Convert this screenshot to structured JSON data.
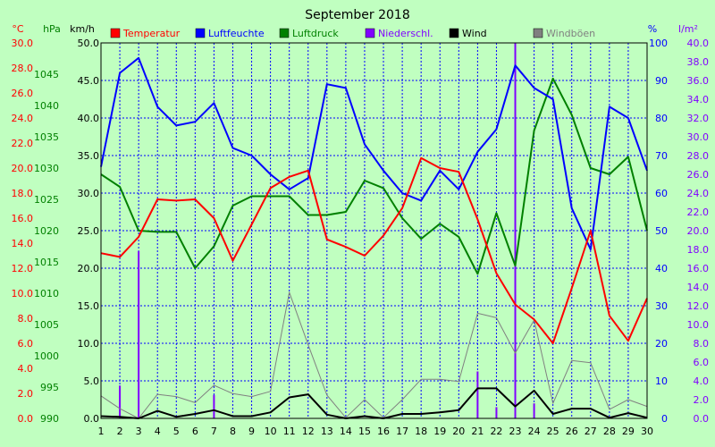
{
  "chart_data": {
    "type": "line",
    "title": "September 2018",
    "categories": [
      "1",
      "2",
      "3",
      "4",
      "5",
      "6",
      "7",
      "8",
      "9",
      "10",
      "11",
      "12",
      "13",
      "14",
      "15",
      "16",
      "17",
      "18",
      "19",
      "20",
      "21",
      "22",
      "23",
      "24",
      "25",
      "26",
      "27",
      "28",
      "29",
      "30"
    ],
    "axes": [
      {
        "id": "temp",
        "label": "°C",
        "side": "left",
        "min": 0,
        "max": 30,
        "step": 2,
        "decimals": 1,
        "color": "#ff0000"
      },
      {
        "id": "press",
        "label": "hPa",
        "side": "left",
        "min": 990,
        "max": 1050,
        "step": 5,
        "decimals": 0,
        "top_tick": 1045,
        "color": "#008000"
      },
      {
        "id": "wind",
        "label": "km/h",
        "side": "left",
        "min": 0,
        "max": 50,
        "step": 5,
        "decimals": 1,
        "color": "#000000"
      },
      {
        "id": "hum",
        "label": "%",
        "side": "right",
        "min": 0,
        "max": 100,
        "step": 10,
        "decimals": 0,
        "color": "#0000ff"
      },
      {
        "id": "rain",
        "label": "l/m²",
        "side": "right",
        "min": 0,
        "max": 40,
        "step": 2,
        "decimals": 1,
        "color": "#8000ff"
      }
    ],
    "series": [
      {
        "name": "Temperatur",
        "axis": "temp",
        "color": "#ff0000",
        "width": 2,
        "kind": "line",
        "values": [
          13.2,
          12.9,
          14.5,
          17.5,
          17.4,
          17.5,
          16.0,
          12.6,
          15.5,
          18.4,
          19.3,
          19.8,
          14.3,
          13.7,
          13.0,
          14.6,
          16.8,
          20.8,
          20.0,
          19.7,
          15.9,
          11.6,
          9.1,
          7.9,
          6.0,
          10.4,
          15.0,
          8.2,
          6.2,
          9.6
        ]
      },
      {
        "name": "Luftfeuchte",
        "axis": "hum",
        "color": "#0000ff",
        "width": 2,
        "kind": "line",
        "values": [
          67,
          92,
          96,
          83,
          78,
          79,
          84,
          72,
          70,
          65,
          61,
          64,
          89,
          88,
          73,
          66,
          60,
          58,
          66,
          61,
          71,
          77,
          94,
          88,
          85,
          56,
          45,
          83,
          80,
          66
        ]
      },
      {
        "name": "Luftdruck",
        "axis": "press",
        "color": "#008000",
        "width": 2,
        "kind": "line",
        "values": [
          1029,
          1027,
          1020,
          1019.8,
          1019.8,
          1014,
          1017.5,
          1024,
          1025.5,
          1025.5,
          1025.5,
          1022.5,
          1022.5,
          1023,
          1028,
          1026.8,
          1022,
          1018.7,
          1021.1,
          1019,
          1013.1,
          1022.8,
          1014.4,
          1036,
          1044.3,
          1038.5,
          1030,
          1029,
          1031.8,
          1020
        ]
      },
      {
        "name": "Niederschl.",
        "axis": "rain",
        "color": "#8000ff",
        "width": 2,
        "kind": "bar",
        "values": [
          0,
          3.5,
          17.8,
          0,
          0,
          0,
          2.5,
          0,
          0,
          0,
          0,
          0,
          0,
          0,
          0,
          0,
          0,
          0,
          0,
          0,
          5.0,
          1.2,
          40.0,
          1.6,
          0,
          0,
          0,
          0,
          0,
          0
        ]
      },
      {
        "name": "Wind",
        "axis": "wind",
        "color": "#000000",
        "width": 2,
        "kind": "line",
        "values": [
          0.3,
          0.2,
          0.0,
          1.0,
          0.2,
          0.6,
          1.1,
          0.3,
          0.3,
          0.8,
          2.8,
          3.2,
          0.5,
          0.0,
          0.3,
          0.0,
          0.6,
          0.6,
          0.8,
          1.1,
          4.0,
          4.0,
          1.6,
          3.7,
          0.6,
          1.3,
          1.3,
          0.1,
          0.7,
          0.1
        ]
      },
      {
        "name": "Windböen",
        "axis": "wind",
        "color": "#808080",
        "width": 1,
        "kind": "line",
        "values": [
          3.0,
          1.3,
          0.0,
          3.2,
          2.9,
          2.1,
          4.4,
          3.3,
          2.9,
          3.6,
          16.8,
          9.8,
          3.1,
          0.1,
          2.5,
          0.1,
          2.5,
          5.2,
          5.2,
          4.9,
          14.0,
          13.4,
          8.7,
          13.1,
          2.0,
          7.7,
          7.4,
          1.2,
          2.5,
          1.6
        ]
      }
    ],
    "grid": true,
    "legend": "top",
    "colors": {
      "background": "#c0ffc0",
      "grid": "#0000ff",
      "frame": "#000000"
    }
  }
}
